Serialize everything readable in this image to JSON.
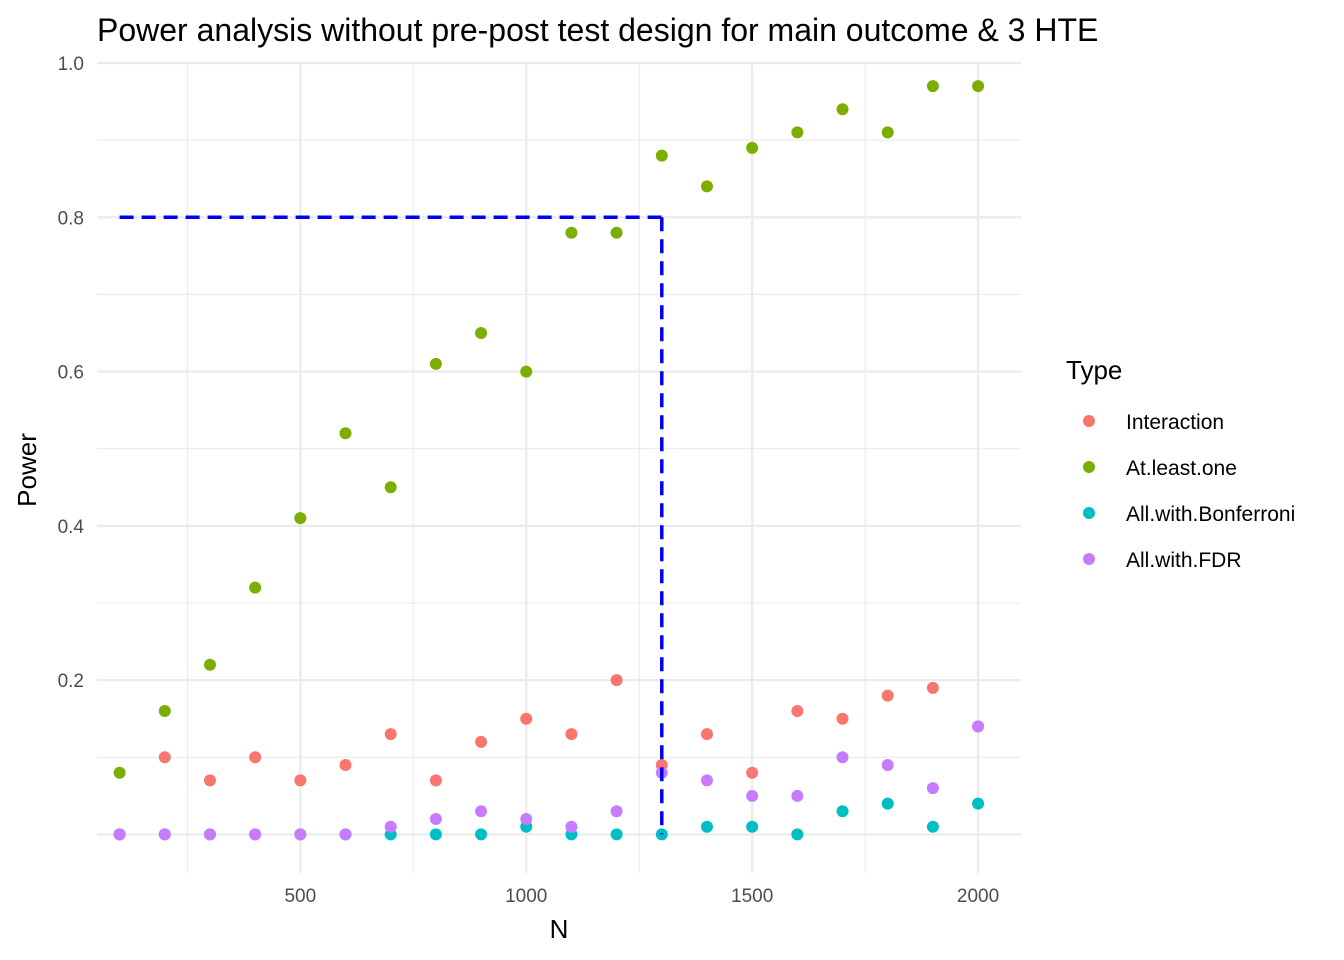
{
  "chart_data": {
    "type": "scatter",
    "title": "Power analysis without pre-post test design for main outcome & 3 HTE",
    "xlabel": "N",
    "ylabel": "Power",
    "xlim": [
      50,
      2095
    ],
    "ylim": [
      -0.05,
      1.0
    ],
    "x_ticks": [
      500,
      1000,
      1500,
      2000
    ],
    "x_tick_labels": [
      "500",
      "1000",
      "1500",
      "2000"
    ],
    "y_ticks": [
      0.2,
      0.4,
      0.6,
      0.8,
      1.0
    ],
    "y_tick_labels": [
      "0.2",
      "0.4",
      "0.6",
      "0.8",
      "1.0"
    ],
    "grid": true,
    "legend": {
      "title": "Type",
      "position": "right"
    },
    "x": [
      100,
      200,
      300,
      400,
      500,
      600,
      700,
      800,
      900,
      1000,
      1100,
      1200,
      1300,
      1400,
      1500,
      1600,
      1700,
      1800,
      1900,
      2000
    ],
    "series": [
      {
        "name": "Interaction",
        "color": "#F8766D",
        "values": [
          0.0,
          0.1,
          0.07,
          0.1,
          0.07,
          0.09,
          0.13,
          0.07,
          0.12,
          0.15,
          0.13,
          0.2,
          0.09,
          0.13,
          0.08,
          0.16,
          0.15,
          0.18,
          0.19,
          0.14
        ]
      },
      {
        "name": "At.least.one",
        "color": "#7CAE00",
        "values": [
          0.08,
          0.16,
          0.22,
          0.32,
          0.41,
          0.52,
          0.45,
          0.61,
          0.65,
          0.6,
          0.78,
          0.78,
          0.88,
          0.84,
          0.89,
          0.91,
          0.94,
          0.91,
          0.97,
          0.97
        ]
      },
      {
        "name": "All.with.Bonferroni",
        "color": "#00BFC4",
        "values": [
          0.0,
          0.0,
          0.0,
          0.0,
          0.0,
          0.0,
          0.0,
          0.0,
          0.0,
          0.01,
          0.0,
          0.0,
          0.0,
          0.01,
          0.01,
          0.0,
          0.03,
          0.04,
          0.01,
          0.04
        ]
      },
      {
        "name": "All.with.FDR",
        "color": "#C77CFF",
        "values": [
          0.0,
          0.0,
          0.0,
          0.0,
          0.0,
          0.0,
          0.01,
          0.02,
          0.03,
          0.02,
          0.01,
          0.03,
          0.08,
          0.07,
          0.05,
          0.05,
          0.1,
          0.09,
          0.06,
          0.14
        ]
      }
    ],
    "reference_lines": {
      "color": "#0000EE",
      "style": "dashed",
      "horizontal": {
        "y": 0.8,
        "x_from": 100,
        "x_to": 1300
      },
      "vertical": {
        "x": 1300,
        "y_from": 0.0,
        "y_to": 0.8
      }
    }
  }
}
